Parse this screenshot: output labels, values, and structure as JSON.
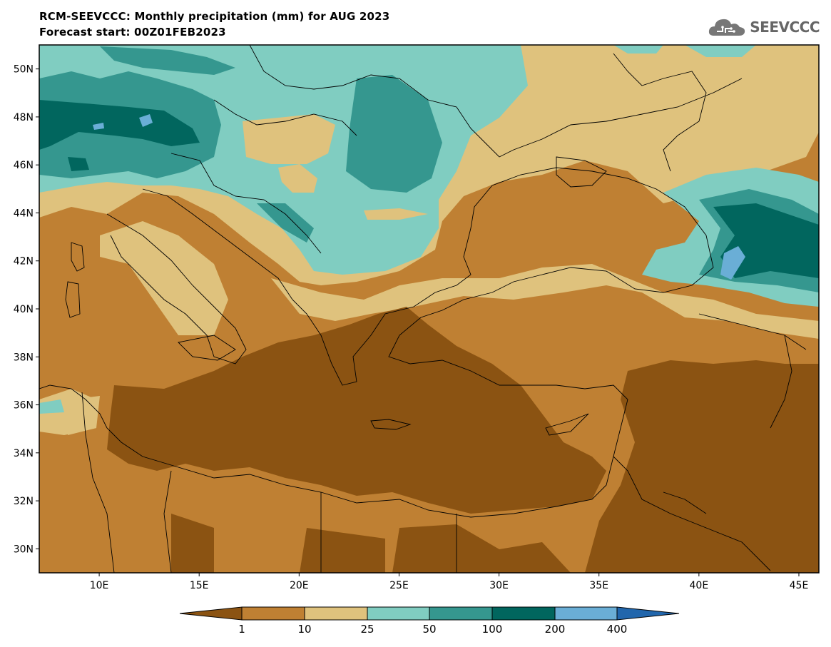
{
  "title": {
    "line1": "RCM-SEEVCCC: Monthly precipitation (mm) for AUG 2023",
    "line2": "Forecast start: 00Z01FEB2023"
  },
  "logo": {
    "text": "SEEVCCC",
    "icon": "cloud-logo-icon"
  },
  "map": {
    "lon_range": [
      7,
      46
    ],
    "lat_range": [
      29,
      51
    ],
    "lat_ticks": [
      "30N",
      "32N",
      "34N",
      "36N",
      "38N",
      "40N",
      "42N",
      "44N",
      "46N",
      "48N",
      "50N"
    ],
    "lon_ticks": [
      "10E",
      "15E",
      "20E",
      "25E",
      "30E",
      "35E",
      "40E",
      "45E"
    ]
  },
  "legend": {
    "levels": [
      "1",
      "10",
      "25",
      "50",
      "100",
      "200",
      "400"
    ],
    "colors": [
      "#8b5312",
      "#bf8033",
      "#dfc27d",
      "#80cdc1",
      "#35978f",
      "#01665e",
      "#6aaed6",
      "#2166ac"
    ]
  }
}
